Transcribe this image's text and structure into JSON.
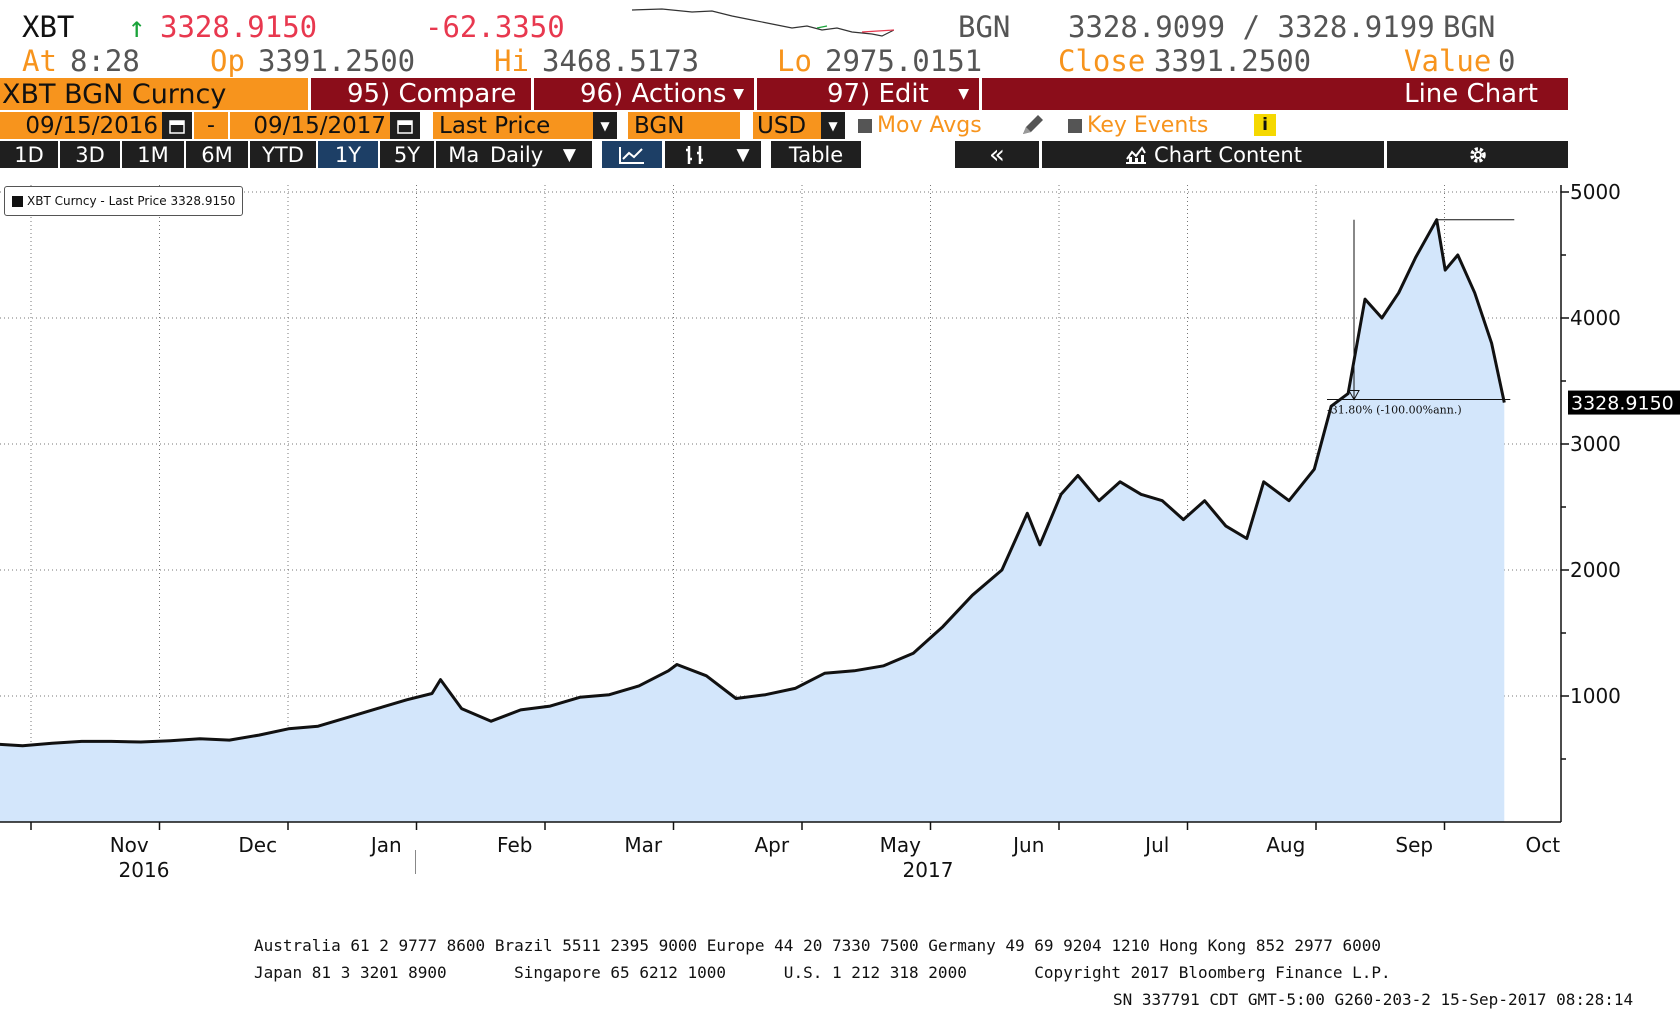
{
  "quote": {
    "ticker": "XBT",
    "arrow": "↑",
    "last": "3328.9150",
    "change": "-62.3350",
    "source1": "BGN",
    "bidask": "3328.9099 / 3328.9199",
    "source2": "BGN",
    "at_label": "At",
    "at_value": "8:28",
    "op_label": "Op",
    "op_value": "3391.2500",
    "hi_label": "Hi",
    "hi_value": "3468.5173",
    "lo_label": "Lo",
    "lo_value": "2975.0151",
    "close_label": "Close",
    "close_value": "3391.2500",
    "value_label": "Value",
    "value_value": "0"
  },
  "toolbar": {
    "security": "XBT BGN Curncy",
    "compare": "95) Compare",
    "actions": "96) Actions",
    "edit": "97) Edit",
    "chart_type": "Line Chart",
    "start_date": "09/15/2016",
    "dash": "-",
    "end_date": "09/15/2017",
    "field": "Last Price",
    "pricing_source": "BGN",
    "currency": "USD",
    "mov_avgs": "Mov Avgs",
    "key_events": "Key Events",
    "info": "i",
    "ranges": [
      "1D",
      "3D",
      "1M",
      "6M",
      "YTD",
      "1Y",
      "5Y",
      "Max"
    ],
    "active_range": "1Y",
    "frequency": "Daily",
    "table": "Table",
    "collapse": "«",
    "chart_content": "Chart Content"
  },
  "legend": {
    "label": "XBT Curncy - Last Price 3328.9150"
  },
  "annotation": {
    "text": "-31.80% (-100.00%ann.)"
  },
  "last_price_tag": "3328.9150",
  "colors": {
    "orange": "#f7941d",
    "maroon": "#8b0d1a",
    "area_fill": "#d3e6fb",
    "line": "#111111",
    "up": "#1aa33a",
    "down": "#e8384f"
  },
  "chart_data": {
    "type": "area",
    "ylim": [
      0,
      5000
    ],
    "yticks": [
      1000,
      2000,
      3000,
      4000,
      5000
    ],
    "months": [
      "Nov",
      "Dec",
      "Jan",
      "Feb",
      "Mar",
      "Apr",
      "May",
      "Jun",
      "Jul",
      "Aug",
      "Sep",
      "Oct"
    ],
    "years": [
      "2016",
      "2017"
    ],
    "x": [
      "2016-09-15",
      "2016-09-22",
      "2016-09-29",
      "2016-10-06",
      "2016-10-13",
      "2016-10-20",
      "2016-10-27",
      "2016-11-03",
      "2016-11-10",
      "2016-11-17",
      "2016-11-24",
      "2016-12-01",
      "2016-12-08",
      "2016-12-15",
      "2016-12-22",
      "2016-12-29",
      "2017-01-04",
      "2017-01-06",
      "2017-01-11",
      "2017-01-18",
      "2017-01-25",
      "2017-02-01",
      "2017-02-08",
      "2017-02-15",
      "2017-02-22",
      "2017-03-01",
      "2017-03-03",
      "2017-03-10",
      "2017-03-17",
      "2017-03-24",
      "2017-03-31",
      "2017-04-07",
      "2017-04-14",
      "2017-04-21",
      "2017-04-28",
      "2017-05-05",
      "2017-05-12",
      "2017-05-19",
      "2017-05-25",
      "2017-05-28",
      "2017-06-02",
      "2017-06-06",
      "2017-06-11",
      "2017-06-16",
      "2017-06-21",
      "2017-06-26",
      "2017-07-01",
      "2017-07-06",
      "2017-07-11",
      "2017-07-16",
      "2017-07-20",
      "2017-07-26",
      "2017-08-01",
      "2017-08-05",
      "2017-08-09",
      "2017-08-13",
      "2017-08-17",
      "2017-08-21",
      "2017-08-25",
      "2017-08-30",
      "2017-09-01",
      "2017-09-04",
      "2017-09-08",
      "2017-09-12",
      "2017-09-15"
    ],
    "series": [
      {
        "values": [
          610,
          620,
          605,
          625,
          640,
          640,
          635,
          645,
          660,
          650,
          690,
          740,
          760,
          830,
          900,
          970,
          1020,
          1130,
          900,
          800,
          890,
          920,
          990,
          1010,
          1080,
          1200,
          1250,
          1160,
          980,
          1010,
          1060,
          1180,
          1200,
          1240,
          1340,
          1550,
          1800,
          2000,
          2450,
          2200,
          2600,
          2750,
          2550,
          2700,
          2600,
          2550,
          2400,
          2550,
          2350,
          2250,
          2700,
          2550,
          2800,
          3300,
          3400,
          4150,
          4000,
          4200,
          4480,
          4780,
          4380,
          4500,
          4200,
          3800,
          3328.915
        ]
      }
    ]
  },
  "footer": {
    "line1": "Australia 61 2 9777 8600 Brazil 5511 2395 9000 Europe 44 20 7330 7500 Germany 49 69 9204 1210 Hong Kong 852 2977 6000",
    "line2": "Japan 81 3 3201 8900       Singapore 65 6212 1000      U.S. 1 212 318 2000       Copyright 2017 Bloomberg Finance L.P.",
    "line3": "SN 337791 CDT  GMT-5:00 G260-203-2 15-Sep-2017 08:28:14"
  }
}
